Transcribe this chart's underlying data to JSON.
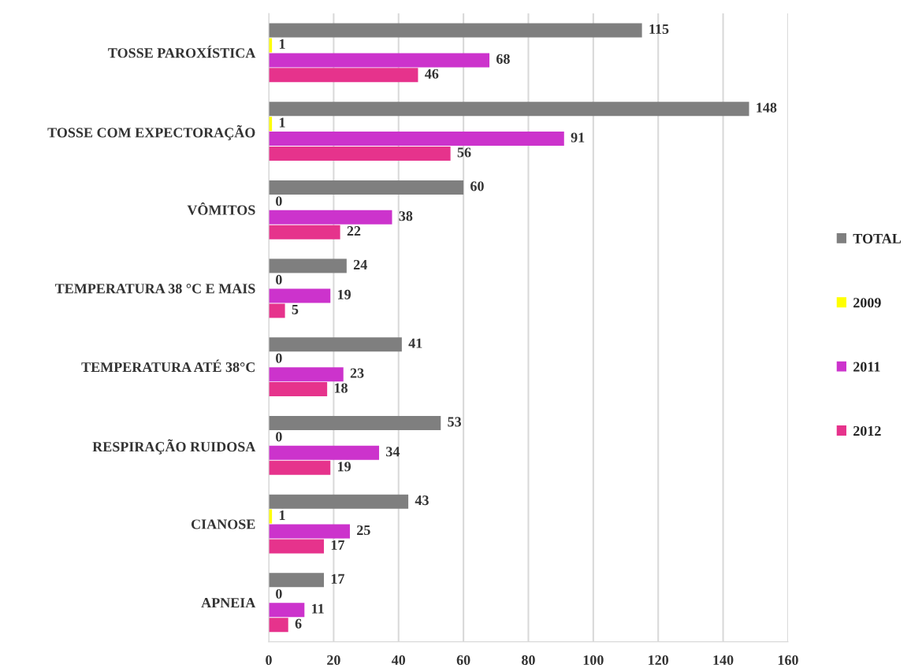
{
  "chart_data": {
    "type": "bar",
    "orientation": "horizontal",
    "categories": [
      "TOSSE PAROXÍSTICA",
      "TOSSE COM EXPECTORAÇÃO",
      "VÔMITOS",
      "TEMPERATURA 38 °C E MAIS",
      "TEMPERATURA ATÉ 38°C",
      "RESPIRAÇÃO RUIDOSA",
      "CIANOSE",
      "APNEIA"
    ],
    "series": [
      {
        "name": "TOTAL",
        "color": "#7f7f7f",
        "values": [
          115,
          148,
          60,
          24,
          41,
          53,
          43,
          17
        ]
      },
      {
        "name": "2009",
        "color": "#ffff00",
        "values": [
          1,
          1,
          0,
          0,
          0,
          0,
          1,
          0
        ]
      },
      {
        "name": "2011",
        "color": "#cc33cc",
        "values": [
          68,
          91,
          38,
          19,
          23,
          34,
          25,
          11
        ]
      },
      {
        "name": "2012",
        "color": "#e6338c",
        "values": [
          46,
          56,
          22,
          5,
          18,
          19,
          17,
          6
        ]
      }
    ],
    "xlim": [
      0,
      160
    ],
    "xticks": [
      0,
      20,
      40,
      60,
      80,
      100,
      120,
      140,
      160
    ],
    "grid": "x",
    "legend": "right",
    "data_labels": true
  }
}
